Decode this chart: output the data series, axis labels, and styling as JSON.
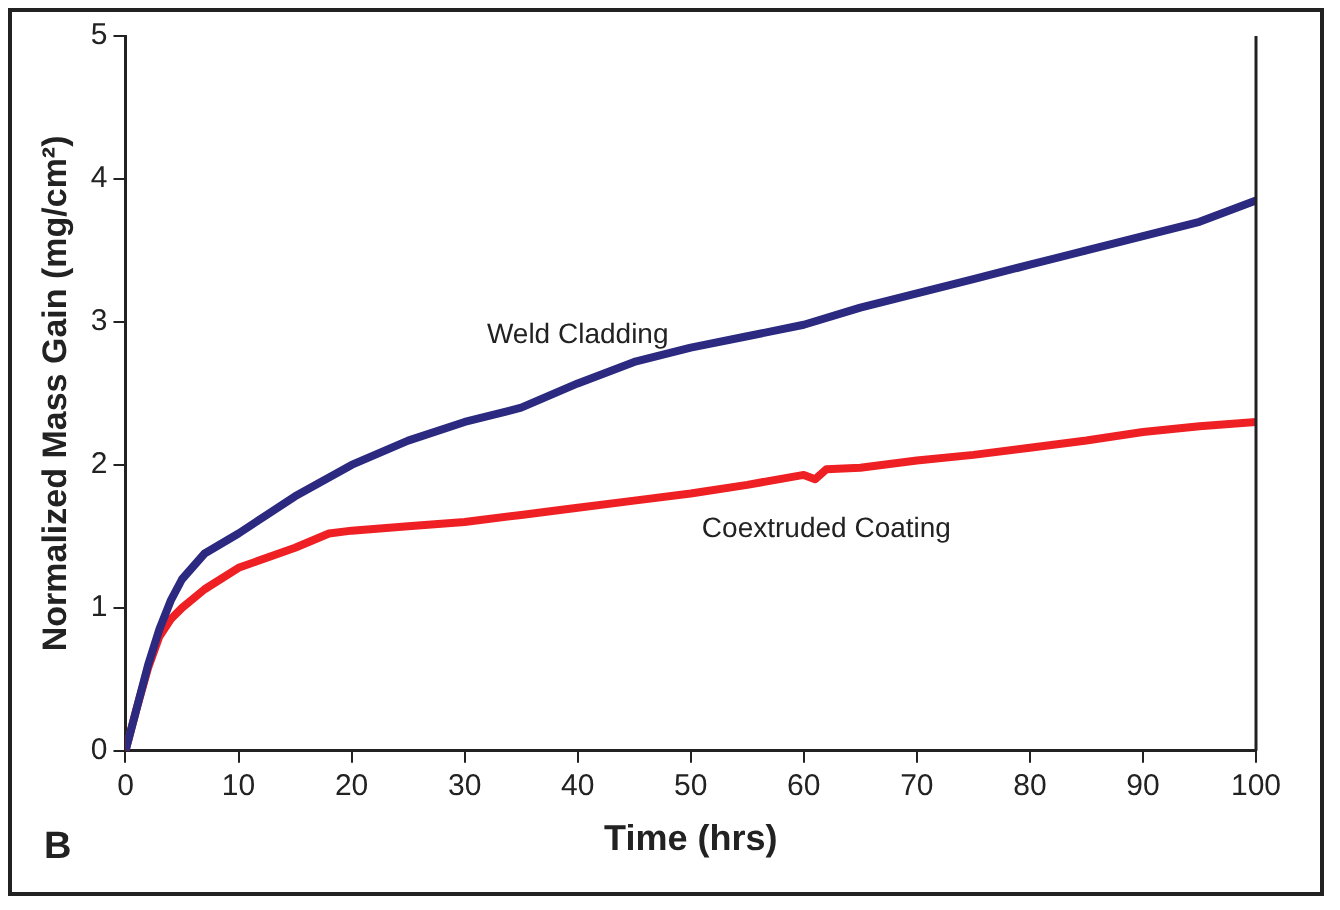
{
  "chart_data": {
    "type": "line",
    "xlabel": "Time (hrs)",
    "ylabel": "Normalized Mass Gain (mg/cm²)",
    "xlim": [
      0,
      100
    ],
    "xticks": [
      0,
      10,
      20,
      30,
      40,
      50,
      60,
      70,
      80,
      90,
      100
    ],
    "ylim": [
      0,
      5
    ],
    "yticks": [
      0,
      1,
      2,
      3,
      4,
      5
    ],
    "grid": false,
    "legend": false,
    "marker": "none",
    "line_style": "solid",
    "series": [
      {
        "name": "Weld Cladding",
        "color": "#2b2a80",
        "x": [
          0,
          1,
          2,
          3,
          4,
          5,
          7,
          10,
          15,
          20,
          25,
          30,
          35,
          40,
          45,
          50,
          55,
          60,
          65,
          70,
          75,
          80,
          85,
          90,
          95,
          100
        ],
        "values": [
          0,
          0.3,
          0.6,
          0.85,
          1.05,
          1.2,
          1.38,
          1.52,
          1.78,
          2.0,
          2.17,
          2.3,
          2.4,
          2.57,
          2.72,
          2.82,
          2.9,
          2.98,
          3.1,
          3.2,
          3.3,
          3.4,
          3.5,
          3.6,
          3.7,
          3.85
        ]
      },
      {
        "name": "Coextruded Coating",
        "color": "#ee2024",
        "x": [
          0,
          1,
          2,
          3,
          4,
          5,
          7,
          10,
          15,
          18,
          20,
          25,
          30,
          35,
          40,
          45,
          50,
          55,
          60,
          61,
          62,
          65,
          70,
          75,
          80,
          85,
          90,
          95,
          100
        ],
        "values": [
          0,
          0.3,
          0.58,
          0.8,
          0.92,
          1.0,
          1.13,
          1.28,
          1.42,
          1.52,
          1.54,
          1.57,
          1.6,
          1.65,
          1.7,
          1.75,
          1.8,
          1.86,
          1.93,
          1.9,
          1.97,
          1.98,
          2.03,
          2.07,
          2.12,
          2.17,
          2.23,
          2.27,
          2.3
        ]
      }
    ],
    "annotations": [
      "B"
    ]
  }
}
